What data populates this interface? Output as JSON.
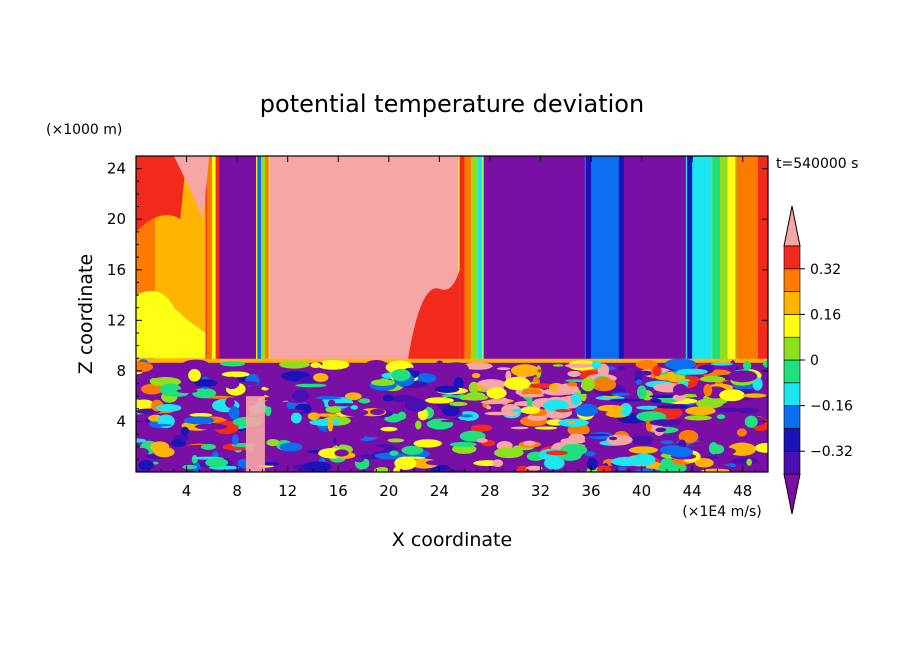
{
  "chart_data": {
    "type": "heatmap",
    "title": "potential temperature deviation",
    "xlabel": "X coordinate",
    "ylabel": "Z coordinate",
    "x_unit": "(×1E4 m/s)",
    "y_unit": "(×1000 m)",
    "time_label": "t=540000 s",
    "xlim": [
      0,
      50
    ],
    "ylim": [
      0,
      25
    ],
    "x_ticks": [
      4,
      8,
      12,
      16,
      20,
      24,
      28,
      32,
      36,
      40,
      44,
      48
    ],
    "y_ticks": [
      4,
      8,
      12,
      16,
      20,
      24
    ],
    "colorbar": {
      "levels": [
        -0.4,
        -0.32,
        -0.24,
        -0.16,
        -0.08,
        0,
        0.08,
        0.16,
        0.24,
        0.32,
        0.4
      ],
      "labels": [
        "0.32",
        "0.16",
        "0",
        "−0.16",
        "−0.32"
      ],
      "label_values": [
        0.32,
        0.16,
        0,
        -0.16,
        -0.32
      ],
      "colors": [
        "#7a0fa6",
        "#4a0fb0",
        "#1a14b8",
        "#0a6ef0",
        "#1ee6f0",
        "#1ee07e",
        "#8ee01e",
        "#ffff14",
        "#ffb400",
        "#ff7a00",
        "#f22a1e",
        "#f7a6a6"
      ],
      "extend": "both"
    },
    "upper_layer_columns": [
      {
        "x0": 0,
        "x1": 1.5,
        "value": 0.3
      },
      {
        "x0": 1.5,
        "x1": 5.5,
        "value": 0.22
      },
      {
        "x0": 5.5,
        "x1": 6.6,
        "value": 0.38
      },
      {
        "x0": 6.6,
        "x1": 9.5,
        "value": -0.42
      },
      {
        "x0": 9.5,
        "x1": 10.6,
        "value": 0.1
      },
      {
        "x0": 10.6,
        "x1": 25.5,
        "value": 0.45
      },
      {
        "x0": 25.5,
        "x1": 27.5,
        "value": 0.15
      },
      {
        "x0": 27.5,
        "x1": 35.5,
        "value": -0.42
      },
      {
        "x0": 35.5,
        "x1": 38.5,
        "value": -0.2
      },
      {
        "x0": 38.5,
        "x1": 43.5,
        "value": -0.42
      },
      {
        "x0": 43.5,
        "x1": 45.5,
        "value": -0.12
      },
      {
        "x0": 45.5,
        "x1": 47.5,
        "value": 0.05
      },
      {
        "x0": 47.5,
        "x1": 50,
        "value": 0.25
      }
    ],
    "interface_height": 8.8
  }
}
